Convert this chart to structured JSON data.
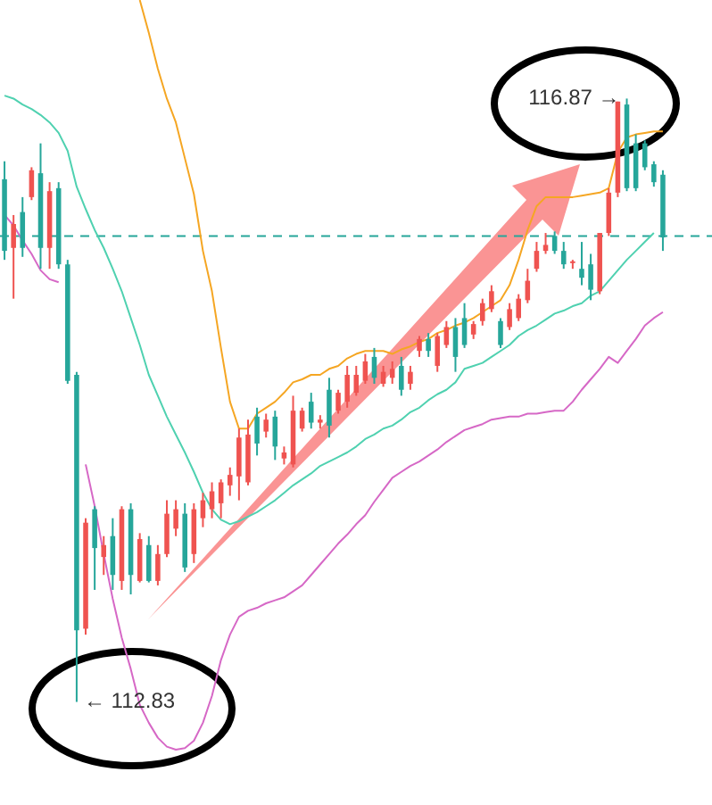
{
  "chart_data": {
    "type": "candlestick",
    "tick_labels": false,
    "marker": "none",
    "categories": [
      null,
      null,
      null,
      null,
      null,
      null,
      null,
      null,
      null,
      null,
      null,
      null,
      null,
      null,
      null,
      null,
      null,
      null,
      null,
      null,
      null,
      null,
      null,
      null,
      null,
      null,
      null,
      null,
      null,
      null,
      null,
      null,
      null,
      null,
      null,
      null,
      null,
      null,
      null,
      null,
      null,
      null,
      null,
      null,
      null,
      null,
      null,
      null,
      null,
      null,
      null,
      null,
      null,
      null,
      null,
      null,
      null,
      null,
      null,
      null,
      null,
      null,
      null,
      null,
      null,
      null,
      null,
      null,
      null,
      null,
      null,
      null,
      null,
      null
    ],
    "ohlc": [
      [
        116.33,
        116.45,
        115.79,
        115.85
      ],
      [
        115.87,
        116.09,
        115.53,
        116.03
      ],
      [
        116.11,
        116.21,
        115.81,
        115.87
      ],
      [
        116.21,
        116.41,
        116.19,
        116.39
      ],
      [
        116.37,
        116.57,
        115.73,
        115.87
      ],
      [
        115.87,
        116.31,
        115.73,
        116.25
      ],
      [
        116.27,
        116.31,
        115.73,
        115.76
      ],
      [
        115.76,
        115.79,
        114.96,
        114.98
      ],
      [
        115.02,
        115.04,
        112.83,
        113.31
      ],
      [
        113.32,
        114.06,
        113.28,
        114.03
      ],
      [
        114.12,
        114.14,
        113.58,
        113.86
      ],
      [
        113.8,
        113.94,
        113.68,
        113.88
      ],
      [
        113.94,
        114.06,
        113.58,
        113.68
      ],
      [
        113.64,
        114.14,
        113.58,
        114.12
      ],
      [
        114.12,
        114.16,
        113.55,
        113.68
      ],
      [
        113.64,
        113.96,
        113.63,
        113.92
      ],
      [
        113.88,
        113.94,
        113.63,
        113.64
      ],
      [
        113.64,
        113.88,
        113.61,
        113.82
      ],
      [
        113.82,
        114.18,
        113.8,
        114.09
      ],
      [
        113.99,
        114.18,
        113.94,
        114.12
      ],
      [
        114.09,
        114.16,
        113.7,
        113.73
      ],
      [
        113.82,
        114.16,
        113.76,
        114.12
      ],
      [
        114.06,
        114.23,
        114.0,
        114.18
      ],
      [
        114.12,
        114.3,
        114.06,
        114.24
      ],
      [
        114.16,
        114.32,
        114.06,
        114.3
      ],
      [
        114.28,
        114.4,
        114.21,
        114.35
      ],
      [
        114.34,
        114.66,
        114.18,
        114.6
      ],
      [
        114.3,
        114.72,
        114.28,
        114.62
      ],
      [
        114.74,
        114.8,
        114.48,
        114.56
      ],
      [
        114.64,
        114.76,
        114.6,
        114.72
      ],
      [
        114.74,
        114.78,
        114.45,
        114.54
      ],
      [
        114.46,
        114.54,
        114.42,
        114.5
      ],
      [
        114.42,
        114.88,
        114.4,
        114.78
      ],
      [
        114.66,
        114.8,
        114.64,
        114.78
      ],
      [
        114.84,
        114.9,
        114.66,
        114.7
      ],
      [
        114.7,
        114.75,
        114.66,
        114.72
      ],
      [
        114.92,
        115.0,
        114.6,
        114.68
      ],
      [
        114.78,
        114.92,
        114.76,
        114.9
      ],
      [
        114.84,
        115.08,
        114.8,
        115.02
      ],
      [
        114.9,
        115.08,
        114.88,
        115.02
      ],
      [
        114.98,
        115.16,
        114.96,
        115.11
      ],
      [
        115.14,
        115.2,
        114.96,
        115.0
      ],
      [
        114.96,
        115.08,
        114.94,
        115.04
      ],
      [
        115.0,
        115.11,
        114.96,
        115.06
      ],
      [
        115.08,
        115.14,
        114.88,
        114.92
      ],
      [
        114.96,
        115.08,
        114.92,
        115.04
      ],
      [
        115.18,
        115.28,
        115.14,
        115.26
      ],
      [
        115.26,
        115.3,
        115.14,
        115.18
      ],
      [
        115.08,
        115.3,
        115.04,
        115.28
      ],
      [
        115.22,
        115.38,
        115.2,
        115.34
      ],
      [
        115.34,
        115.4,
        115.04,
        115.14
      ],
      [
        115.4,
        115.5,
        115.2,
        115.22
      ],
      [
        115.29,
        115.38,
        115.26,
        115.36
      ],
      [
        115.38,
        115.53,
        115.35,
        115.5
      ],
      [
        115.46,
        115.62,
        115.44,
        115.58
      ],
      [
        115.38,
        115.4,
        115.2,
        115.22
      ],
      [
        115.34,
        115.5,
        115.32,
        115.46
      ],
      [
        115.4,
        115.56,
        115.38,
        115.53
      ],
      [
        115.52,
        115.73,
        115.5,
        115.65
      ],
      [
        115.73,
        115.91,
        115.71,
        115.85
      ],
      [
        115.85,
        115.97,
        115.83,
        115.89
      ],
      [
        115.95,
        115.98,
        115.83,
        115.85
      ],
      [
        115.85,
        115.91,
        115.73,
        115.76
      ],
      [
        115.77,
        115.79,
        115.73,
        115.78
      ],
      [
        115.73,
        115.91,
        115.62,
        115.67
      ],
      [
        115.76,
        115.83,
        115.52,
        115.59
      ],
      [
        115.58,
        115.97,
        115.56,
        115.97
      ],
      [
        115.97,
        116.27,
        115.95,
        116.24
      ],
      [
        116.24,
        116.85,
        116.21,
        116.85
      ],
      [
        116.83,
        116.87,
        116.25,
        116.27
      ],
      [
        116.57,
        116.63,
        116.25,
        116.27
      ],
      [
        116.57,
        116.59,
        116.39,
        116.41
      ],
      [
        116.43,
        116.45,
        116.28,
        116.31
      ],
      [
        116.36,
        116.39,
        115.85,
        115.94
      ]
    ],
    "colors": [
      "#26a69a",
      "#ef5350",
      "#26a69a",
      "#ef5350",
      "#26a69a",
      "#ef5350",
      "#26a69a",
      "#26a69a",
      "#26a69a",
      "#ef5350",
      "#26a69a",
      "#ef5350",
      "#26a69a",
      "#ef5350",
      "#26a69a",
      "#ef5350",
      "#26a69a",
      "#ef5350",
      "#ef5350",
      "#ef5350",
      "#26a69a",
      "#ef5350",
      "#ef5350",
      "#ef5350",
      "#ef5350",
      "#ef5350",
      "#ef5350",
      "#ef5350",
      "#26a69a",
      "#ef5350",
      "#26a69a",
      "#ef5350",
      "#ef5350",
      "#ef5350",
      "#26a69a",
      "#ef5350",
      "#26a69a",
      "#ef5350",
      "#ef5350",
      "#ef5350",
      "#ef5350",
      "#26a69a",
      "#ef5350",
      "#ef5350",
      "#26a69a",
      "#ef5350",
      "#ef5350",
      "#26a69a",
      "#ef5350",
      "#ef5350",
      "#26a69a",
      "#26a69a",
      "#ef5350",
      "#ef5350",
      "#ef5350",
      "#26a69a",
      "#ef5350",
      "#ef5350",
      "#ef5350",
      "#ef5350",
      "#ef5350",
      "#26a69a",
      "#26a69a",
      "#ef5350",
      "#26a69a",
      "#26a69a",
      "#ef5350",
      "#ef5350",
      "#ef5350",
      "#26a69a",
      "#26a69a",
      "#26a69a",
      "#26a69a",
      "#26a69a"
    ],
    "series": [
      {
        "type": "line",
        "color": "#f5a623",
        "values": [
          null,
          null,
          null,
          null,
          null,
          null,
          null,
          null,
          null,
          null,
          null,
          null,
          null,
          null,
          null,
          117.53,
          117.31,
          117.07,
          116.87,
          116.71,
          116.47,
          116.23,
          115.85,
          115.58,
          115.2,
          114.84,
          114.66,
          114.66,
          114.76,
          114.8,
          114.84,
          114.9,
          114.97,
          114.99,
          115.02,
          115.02,
          115.06,
          115.08,
          115.13,
          115.16,
          115.18,
          115.18,
          115.18,
          115.16,
          115.19,
          115.21,
          115.24,
          115.26,
          115.3,
          115.32,
          115.35,
          115.37,
          115.4,
          115.44,
          115.48,
          115.52,
          115.62,
          115.79,
          115.99,
          116.15,
          116.21,
          116.21,
          116.21,
          116.21,
          116.22,
          116.23,
          116.24,
          116.27,
          116.51,
          116.61,
          116.63,
          116.64,
          116.65,
          116.65
        ]
      },
      {
        "type": "line",
        "color": "#4fd1b0",
        "values": [
          116.89,
          116.87,
          116.83,
          116.8,
          116.76,
          116.71,
          116.64,
          116.52,
          116.28,
          116.13,
          115.99,
          115.87,
          115.73,
          115.58,
          115.4,
          115.22,
          115.02,
          114.88,
          114.74,
          114.62,
          114.5,
          114.37,
          114.23,
          114.12,
          114.05,
          114.02,
          114.04,
          114.07,
          114.1,
          114.14,
          114.18,
          114.23,
          114.28,
          114.32,
          114.36,
          114.41,
          114.44,
          114.47,
          114.5,
          114.54,
          114.59,
          114.62,
          114.66,
          114.68,
          114.72,
          114.77,
          114.8,
          114.85,
          114.89,
          114.92,
          114.97,
          115.06,
          115.08,
          115.1,
          115.14,
          115.18,
          115.22,
          115.28,
          115.32,
          115.35,
          115.39,
          115.43,
          115.45,
          115.48,
          115.5,
          115.55,
          115.58,
          115.65,
          115.72,
          115.79,
          115.85,
          115.91,
          115.97,
          null
        ]
      },
      {
        "type": "line",
        "color": "#d668c6",
        "values": [
          116.09,
          116.02,
          115.92,
          115.83,
          115.72,
          115.66,
          115.64,
          null,
          null,
          114.42,
          114.14,
          113.82,
          113.52,
          113.26,
          113.05,
          112.81,
          112.69,
          112.59,
          112.53,
          112.51,
          112.52,
          112.57,
          112.69,
          112.87,
          113.11,
          113.28,
          113.4,
          113.44,
          113.46,
          113.49,
          113.51,
          113.53,
          113.57,
          113.61,
          113.68,
          113.75,
          113.82,
          113.89,
          113.95,
          114.02,
          114.08,
          114.17,
          114.25,
          114.33,
          114.37,
          114.41,
          114.44,
          114.48,
          114.52,
          114.57,
          114.61,
          114.65,
          114.67,
          114.69,
          114.72,
          114.73,
          114.74,
          114.74,
          114.76,
          114.76,
          114.77,
          114.78,
          114.78,
          114.84,
          114.92,
          114.99,
          115.06,
          115.14,
          115.1,
          115.18,
          115.26,
          115.35,
          115.4,
          115.44
        ]
      }
    ],
    "ref_lines": [
      {
        "axis": "y",
        "value": 115.95,
        "color": "#26a69a",
        "line_style": "dashed"
      }
    ],
    "annotations": [
      {
        "text": "← 112.83",
        "y": 112.83
      },
      "116.87 →"
    ]
  }
}
